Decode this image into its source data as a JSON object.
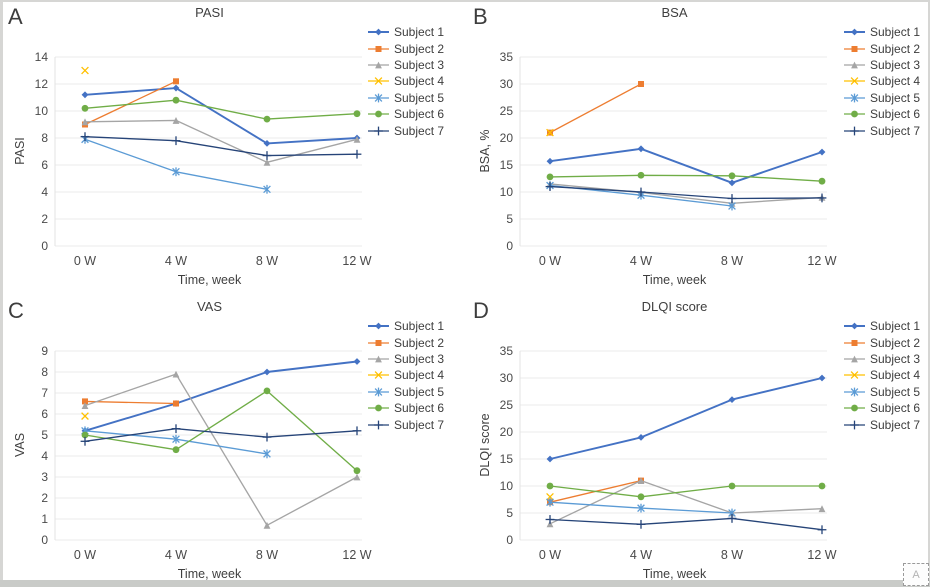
{
  "figure": {
    "xlabel": "Time, week",
    "categories": [
      "0 W",
      "4 W",
      "8 W",
      "12 W"
    ],
    "subjects": [
      {
        "label": "Subject 1",
        "color": "#4472C4",
        "marker": "diamond"
      },
      {
        "label": "Subject 2",
        "color": "#ED7D31",
        "marker": "square"
      },
      {
        "label": "Subject 3",
        "color": "#A5A5A5",
        "marker": "triangle"
      },
      {
        "label": "Subject 4",
        "color": "#FFC000",
        "marker": "x"
      },
      {
        "label": "Subject 5",
        "color": "#5B9BD5",
        "marker": "asterisk"
      },
      {
        "label": "Subject 6",
        "color": "#70AD47",
        "marker": "circle"
      },
      {
        "label": "Subject 7",
        "color": "#264478",
        "marker": "plus"
      }
    ]
  },
  "chart_data": [
    {
      "type": "line",
      "panel_label": "A",
      "title": "PASI",
      "ylabel": "PASI",
      "xlabel": "Time, week",
      "categories": [
        "0 W",
        "4 W",
        "8 W",
        "12 W"
      ],
      "ylim": [
        0,
        14
      ],
      "ytick_step": 2,
      "grid": true,
      "legend_position": "right",
      "series": [
        {
          "name": "Subject 1",
          "values": [
            11.2,
            11.7,
            7.6,
            8.0
          ]
        },
        {
          "name": "Subject 2",
          "values": [
            9.0,
            12.2,
            null,
            null
          ]
        },
        {
          "name": "Subject 3",
          "values": [
            9.2,
            9.3,
            6.2,
            7.9
          ]
        },
        {
          "name": "Subject 4",
          "values": [
            13.0,
            null,
            null,
            null
          ]
        },
        {
          "name": "Subject 5",
          "values": [
            7.9,
            5.5,
            4.2,
            null
          ]
        },
        {
          "name": "Subject 6",
          "values": [
            10.2,
            10.8,
            9.4,
            9.8
          ]
        },
        {
          "name": "Subject 7",
          "values": [
            8.1,
            7.8,
            6.7,
            6.8
          ]
        }
      ]
    },
    {
      "type": "line",
      "panel_label": "B",
      "title": "BSA",
      "ylabel": "BSA, %",
      "xlabel": "Time, week",
      "categories": [
        "0 W",
        "4 W",
        "8 W",
        "12 W"
      ],
      "ylim": [
        0,
        35
      ],
      "ytick_step": 5,
      "grid": true,
      "legend_position": "right",
      "series": [
        {
          "name": "Subject 1",
          "values": [
            15.7,
            18,
            11.7,
            17.4
          ]
        },
        {
          "name": "Subject 2",
          "values": [
            21,
            30,
            null,
            null
          ]
        },
        {
          "name": "Subject 3",
          "values": [
            11.5,
            9.9,
            7.9,
            9.0
          ]
        },
        {
          "name": "Subject 4",
          "values": [
            21,
            null,
            null,
            null
          ]
        },
        {
          "name": "Subject 5",
          "values": [
            11.2,
            9.4,
            7.4,
            null
          ]
        },
        {
          "name": "Subject 6",
          "values": [
            12.8,
            13.1,
            13.0,
            12.0
          ]
        },
        {
          "name": "Subject 7",
          "values": [
            11.0,
            10.0,
            8.8,
            8.9
          ]
        }
      ]
    },
    {
      "type": "line",
      "panel_label": "C",
      "title": "VAS",
      "ylabel": "VAS",
      "xlabel": "Time, week",
      "categories": [
        "0 W",
        "4 W",
        "8 W",
        "12 W"
      ],
      "ylim": [
        0,
        9
      ],
      "ytick_step": 1,
      "grid": true,
      "legend_position": "right",
      "series": [
        {
          "name": "Subject 1",
          "values": [
            5.2,
            6.5,
            8.0,
            8.5
          ]
        },
        {
          "name": "Subject 2",
          "values": [
            6.6,
            6.5,
            null,
            null
          ]
        },
        {
          "name": "Subject 3",
          "values": [
            6.4,
            7.9,
            0.7,
            3.0
          ]
        },
        {
          "name": "Subject 4",
          "values": [
            5.9,
            null,
            null,
            null
          ]
        },
        {
          "name": "Subject 5",
          "values": [
            5.2,
            4.8,
            4.1,
            null
          ]
        },
        {
          "name": "Subject 6",
          "values": [
            5.0,
            4.3,
            7.1,
            3.3
          ]
        },
        {
          "name": "Subject 7",
          "values": [
            4.7,
            5.3,
            4.9,
            5.2
          ]
        }
      ]
    },
    {
      "type": "line",
      "panel_label": "D",
      "title": "DLQI score",
      "ylabel": "DLQI score",
      "xlabel": "Time, week",
      "categories": [
        "0 W",
        "4 W",
        "8 W",
        "12 W"
      ],
      "ylim": [
        0,
        35
      ],
      "ytick_step": 5,
      "grid": true,
      "legend_position": "right",
      "series": [
        {
          "name": "Subject 1",
          "values": [
            15,
            19,
            26,
            30
          ]
        },
        {
          "name": "Subject 2",
          "values": [
            7,
            11,
            null,
            null
          ]
        },
        {
          "name": "Subject 3",
          "values": [
            3,
            11,
            5,
            5.8
          ]
        },
        {
          "name": "Subject 4",
          "values": [
            8,
            null,
            null,
            null
          ]
        },
        {
          "name": "Subject 5",
          "values": [
            7,
            5.9,
            5,
            null
          ]
        },
        {
          "name": "Subject 6",
          "values": [
            10,
            8,
            10,
            10
          ]
        },
        {
          "name": "Subject 7",
          "values": [
            3.8,
            2.9,
            4.0,
            1.9
          ]
        }
      ]
    }
  ],
  "overlay": {
    "annotation_letter": "A"
  }
}
